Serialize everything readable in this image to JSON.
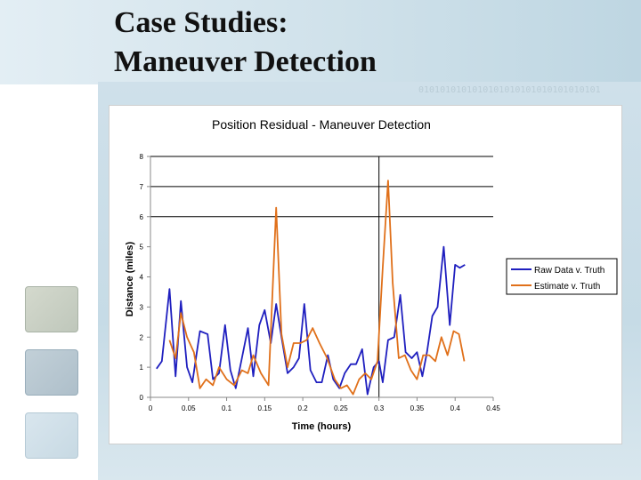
{
  "slide": {
    "title_line1": "Case Studies:",
    "title_line2": "Maneuver Detection",
    "binary_text": "0101010101010101010101010101010101"
  },
  "colors": {
    "raw": "#1f1fbf",
    "estimate": "#e0701a",
    "band": "#cfe0ea"
  },
  "chart_data": {
    "type": "line",
    "title": "Position Residual - Maneuver Detection",
    "xlabel": "Time (hours)",
    "ylabel": "Distance (miles)",
    "xlim": [
      0,
      0.45
    ],
    "ylim": [
      0,
      8
    ],
    "x_ticks": [
      0,
      0.05,
      0.1,
      0.15,
      0.2,
      0.25,
      0.3,
      0.35,
      0.4,
      0.45
    ],
    "x_tick_labels": [
      "0",
      "0.05",
      "0.1",
      "0.15",
      "0.2",
      "0.25",
      "0.3",
      "0.35",
      "0.4",
      "0.45"
    ],
    "y_ticks": [
      0,
      1,
      2,
      3,
      4,
      5,
      6,
      7,
      8
    ],
    "y_tick_labels": [
      "0",
      "1",
      "2",
      "3",
      "4",
      "5",
      "6",
      "7",
      "8"
    ],
    "gridlines_y": [
      6,
      7,
      8
    ],
    "reference_line_x": 0.3,
    "legend_position": "right",
    "series": [
      {
        "name": "Raw Data v. Truth",
        "x": [
          0.008,
          0.015,
          0.025,
          0.033,
          0.04,
          0.048,
          0.055,
          0.065,
          0.075,
          0.082,
          0.09,
          0.098,
          0.105,
          0.112,
          0.12,
          0.128,
          0.135,
          0.143,
          0.15,
          0.158,
          0.165,
          0.172,
          0.18,
          0.188,
          0.195,
          0.202,
          0.21,
          0.218,
          0.225,
          0.233,
          0.24,
          0.248,
          0.255,
          0.263,
          0.27,
          0.278,
          0.285,
          0.293,
          0.3,
          0.305,
          0.312,
          0.32,
          0.328,
          0.335,
          0.343,
          0.35,
          0.357,
          0.363,
          0.37,
          0.377,
          0.385,
          0.393,
          0.4,
          0.406,
          0.413
        ],
        "y": [
          0.95,
          1.2,
          3.6,
          0.7,
          3.2,
          1.0,
          0.5,
          2.2,
          2.1,
          0.6,
          0.8,
          2.4,
          0.9,
          0.3,
          1.3,
          2.3,
          0.7,
          2.4,
          2.9,
          1.8,
          3.1,
          2.0,
          0.8,
          1.0,
          1.3,
          3.1,
          0.9,
          0.5,
          0.5,
          1.4,
          0.6,
          0.3,
          0.8,
          1.1,
          1.1,
          1.6,
          0.1,
          1.0,
          1.2,
          0.5,
          1.9,
          2.0,
          3.4,
          1.5,
          1.3,
          1.5,
          0.7,
          1.5,
          2.7,
          3.0,
          5.0,
          2.4,
          4.4,
          4.3,
          4.4
        ]
      },
      {
        "name": "Estimate v. Truth",
        "x": [
          0.025,
          0.033,
          0.04,
          0.048,
          0.057,
          0.065,
          0.073,
          0.082,
          0.09,
          0.1,
          0.11,
          0.12,
          0.128,
          0.135,
          0.145,
          0.155,
          0.165,
          0.172,
          0.18,
          0.188,
          0.197,
          0.205,
          0.213,
          0.222,
          0.232,
          0.242,
          0.25,
          0.258,
          0.266,
          0.274,
          0.282,
          0.29,
          0.298,
          0.305,
          0.312,
          0.318,
          0.326,
          0.334,
          0.342,
          0.35,
          0.358,
          0.366,
          0.374,
          0.382,
          0.39,
          0.398,
          0.405,
          0.412
        ],
        "y": [
          1.9,
          1.3,
          2.8,
          2.0,
          1.5,
          0.3,
          0.6,
          0.4,
          1.0,
          0.6,
          0.4,
          0.9,
          0.8,
          1.4,
          0.8,
          0.4,
          6.3,
          2.1,
          1.0,
          1.8,
          1.8,
          1.9,
          2.3,
          1.8,
          1.3,
          0.6,
          0.3,
          0.4,
          0.1,
          0.6,
          0.8,
          0.6,
          1.2,
          4.3,
          7.2,
          3.8,
          1.3,
          1.4,
          0.9,
          0.6,
          1.4,
          1.4,
          1.2,
          2.0,
          1.4,
          2.2,
          2.1,
          1.2
        ]
      }
    ]
  }
}
